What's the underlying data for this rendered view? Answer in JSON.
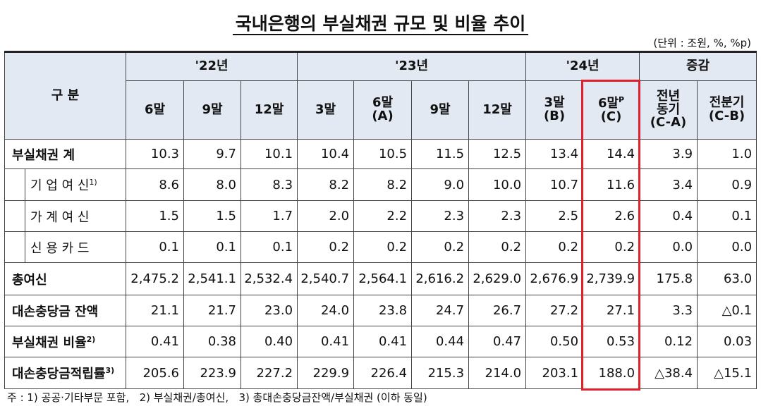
{
  "title": "국내은행의 부실채권 규모 및 비율 추이",
  "unit": "(단위 : 조원, %, %p)",
  "header": {
    "corner": "구    분",
    "groups": [
      "'22년",
      "'23년",
      "'24년",
      "증감"
    ],
    "columns": [
      {
        "label": "6말"
      },
      {
        "label": "9말"
      },
      {
        "label": "12말"
      },
      {
        "label": "3말"
      },
      {
        "label": "6말\n(A)"
      },
      {
        "label": "9말"
      },
      {
        "label": "12말"
      },
      {
        "label": "3말\n(B)"
      },
      {
        "label": "6말",
        "sup": "P",
        "sub": "(C)"
      },
      {
        "label": "전년\n동기\n(C-A)"
      },
      {
        "label": "전분기\n(C-B)"
      }
    ]
  },
  "table": {
    "rows": [
      {
        "label": "부실채권 계",
        "cells": [
          "10.3",
          "9.7",
          "10.1",
          "10.4",
          "10.5",
          "11.5",
          "12.5",
          "13.4",
          "14.4",
          "3.9",
          "1.0"
        ]
      },
      {
        "label": "기 업 여 신",
        "note": "1)",
        "sub": true,
        "cells": [
          "8.6",
          "8.0",
          "8.3",
          "8.2",
          "8.2",
          "9.0",
          "10.0",
          "10.7",
          "11.6",
          "3.4",
          "0.9"
        ]
      },
      {
        "label": "가 계 여 신",
        "sub": true,
        "cells": [
          "1.5",
          "1.5",
          "1.7",
          "2.0",
          "2.2",
          "2.3",
          "2.3",
          "2.5",
          "2.6",
          "0.4",
          "0.1"
        ]
      },
      {
        "label": "신 용 카 드",
        "sub": true,
        "cells": [
          "0.1",
          "0.1",
          "0.1",
          "0.2",
          "0.2",
          "0.2",
          "0.2",
          "0.2",
          "0.2",
          "0.0",
          "0.0"
        ]
      },
      {
        "label": "총여신",
        "cells": [
          "2,475.2",
          "2,541.1",
          "2,532.4",
          "2,540.7",
          "2,564.1",
          "2,616.2",
          "2,629.0",
          "2,676.9",
          "2,739.9",
          "175.8",
          "63.0"
        ]
      },
      {
        "label": "대손충당금 잔액",
        "cells": [
          "21.1",
          "21.7",
          "23.0",
          "24.0",
          "23.8",
          "24.7",
          "26.7",
          "27.2",
          "27.1",
          "3.3",
          "△0.1"
        ]
      },
      {
        "label": "부실채권 비율",
        "note": "2)",
        "cells": [
          "0.41",
          "0.38",
          "0.40",
          "0.41",
          "0.41",
          "0.44",
          "0.47",
          "0.50",
          "0.53",
          "0.12",
          "0.03"
        ]
      },
      {
        "label": "대손충당금적립률",
        "note": "3)",
        "cells": [
          "205.6",
          "223.9",
          "227.2",
          "229.9",
          "226.4",
          "215.3",
          "214.0",
          "203.1",
          "188.0",
          "△38.4",
          "△15.1"
        ]
      }
    ]
  },
  "footnote": "주 : 1) 공공·기타부문 포함,   2) 부실채권/총여신,   3) 총대손충당금잔액/부실채권 (이하 동일)"
}
